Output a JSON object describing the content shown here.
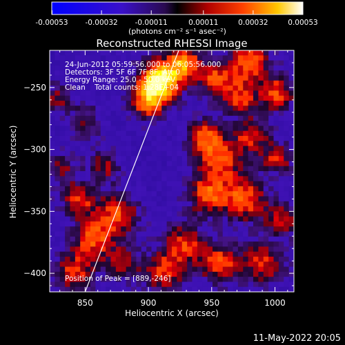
{
  "colorbar": {
    "tick_labels": [
      "-0.00053",
      "-0.00032",
      "-0.00011",
      "0.00011",
      "0.00032",
      "0.00053"
    ],
    "tick_values": [
      -0.00053,
      -0.00032,
      -0.00011,
      0.00011,
      0.00032,
      0.00053
    ],
    "range": [
      -0.00053,
      0.00053
    ],
    "units_label": "(photons cm⁻² s⁻¹ asec⁻²)"
  },
  "chart_data": {
    "type": "heatmap",
    "title": "Reconstructed RHESSI Image",
    "xlabel": "Heliocentric X (arcsec)",
    "ylabel": "Heliocentric Y (arcsec)",
    "xlim": [
      822,
      1015
    ],
    "ylim": [
      -415,
      -220
    ],
    "x_ticks": [
      850,
      900,
      950,
      1000
    ],
    "y_ticks": [
      -400,
      -350,
      -300,
      -250
    ],
    "x_tick_labels": [
      "850",
      "900",
      "950",
      "1000"
    ],
    "y_tick_labels": [
      "−400",
      "−350",
      "−300",
      "−250"
    ],
    "limb_line": [
      [
        850,
        -415
      ],
      [
        924,
        -220
      ]
    ],
    "peak_position": [
      889,
      -246
    ],
    "annotations": [
      "24-Jun-2012 05:59:56.000 to 06:05:56.000",
      "Detectors: 3F 5F 6F 7F 8F, Att 0",
      "Energy Range: 25.0 - 50.0 keV",
      "Clean    Total counts: 1.28E+04"
    ],
    "peak_label": "Position of Peak = [889,-246]",
    "colors": {
      "low": "#1e1eff",
      "mid": "#5000a0",
      "high": "#ff2a00",
      "peak": "#ffffff"
    }
  },
  "footer": {
    "timestamp": "11-May-2022 20:05"
  }
}
